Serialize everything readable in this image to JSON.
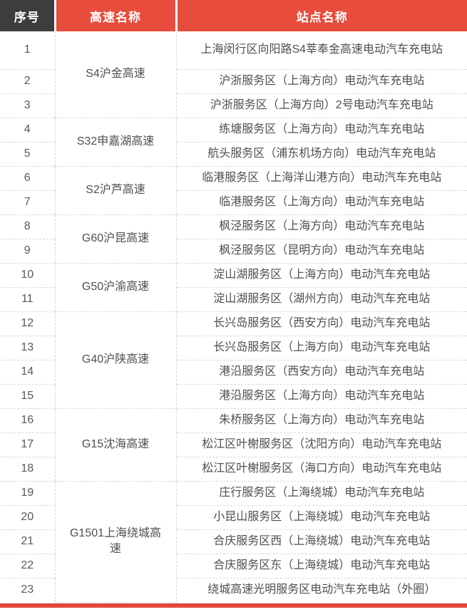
{
  "table": {
    "headers": {
      "serial": "序号",
      "highway": "高速名称",
      "station": "站点名称"
    },
    "groups": [
      {
        "highway": "S4沪金高速",
        "stations": [
          {
            "no": "1",
            "name": "上海闵行区向阳路S4莘奉金高速电动汽车充电站"
          },
          {
            "no": "2",
            "name": "沪浙服务区（上海方向）电动汽车充电站"
          },
          {
            "no": "3",
            "name": "沪浙服务区（上海方向）2号电动汽车充电站"
          }
        ]
      },
      {
        "highway": "S32申嘉湖高速",
        "stations": [
          {
            "no": "4",
            "name": "练塘服务区（上海方向）电动汽车充电站"
          },
          {
            "no": "5",
            "name": "航头服务区（浦东机场方向）电动汽车充电站"
          }
        ]
      },
      {
        "highway": "S2沪芦高速",
        "stations": [
          {
            "no": "6",
            "name": "临港服务区（上海洋山港方向）电动汽车充电站"
          },
          {
            "no": "7",
            "name": "临港服务区（上海方向）电动汽车充电站"
          }
        ]
      },
      {
        "highway": "G60沪昆高速",
        "stations": [
          {
            "no": "8",
            "name": "枫泾服务区（上海方向）电动汽车充电站"
          },
          {
            "no": "9",
            "name": "枫泾服务区（昆明方向）电动汽车充电站"
          }
        ]
      },
      {
        "highway": "G50沪渝高速",
        "stations": [
          {
            "no": "10",
            "name": "淀山湖服务区（上海方向）电动汽车充电站"
          },
          {
            "no": "11",
            "name": "淀山湖服务区（湖州方向）电动汽车充电站"
          }
        ]
      },
      {
        "highway": "G40沪陕高速",
        "stations": [
          {
            "no": "12",
            "name": "长兴岛服务区（西安方向）电动汽车充电站"
          },
          {
            "no": "13",
            "name": "长兴岛服务区（上海方向）电动汽车充电站"
          },
          {
            "no": "14",
            "name": "港沿服务区（西安方向）电动汽车充电站"
          },
          {
            "no": "15",
            "name": "港沿服务区（上海方向）电动汽车充电站"
          }
        ]
      },
      {
        "highway": "G15沈海高速",
        "stations": [
          {
            "no": "16",
            "name": "朱桥服务区（上海方向）电动汽车充电站"
          },
          {
            "no": "17",
            "name": "松江区叶榭服务区（沈阳方向）电动汽车充电站"
          },
          {
            "no": "18",
            "name": "松江区叶榭服务区（海口方向）电动汽车充电站"
          }
        ]
      },
      {
        "highway": "G1501上海绕城高速",
        "stations": [
          {
            "no": "19",
            "name": "庄行服务区（上海绕城）电动汽车充电站"
          },
          {
            "no": "20",
            "name": "小昆山服务区（上海绕城）电动汽车充电站"
          },
          {
            "no": "21",
            "name": "合庆服务区西（上海绕城）电动汽车充电站"
          },
          {
            "no": "22",
            "name": "合庆服务区东（上海绕城）电动汽车充电站"
          },
          {
            "no": "23",
            "name": "绕城高速光明服务区电动汽车充电站（外圈）"
          }
        ]
      }
    ]
  },
  "colors": {
    "header_dark_bg": "#3d3d3d",
    "header_red_bg": "#e74c3c",
    "bottom_bar": "#e8473a",
    "body_text": "#4f4f4f",
    "dashed_border": "#d9d9d9"
  }
}
